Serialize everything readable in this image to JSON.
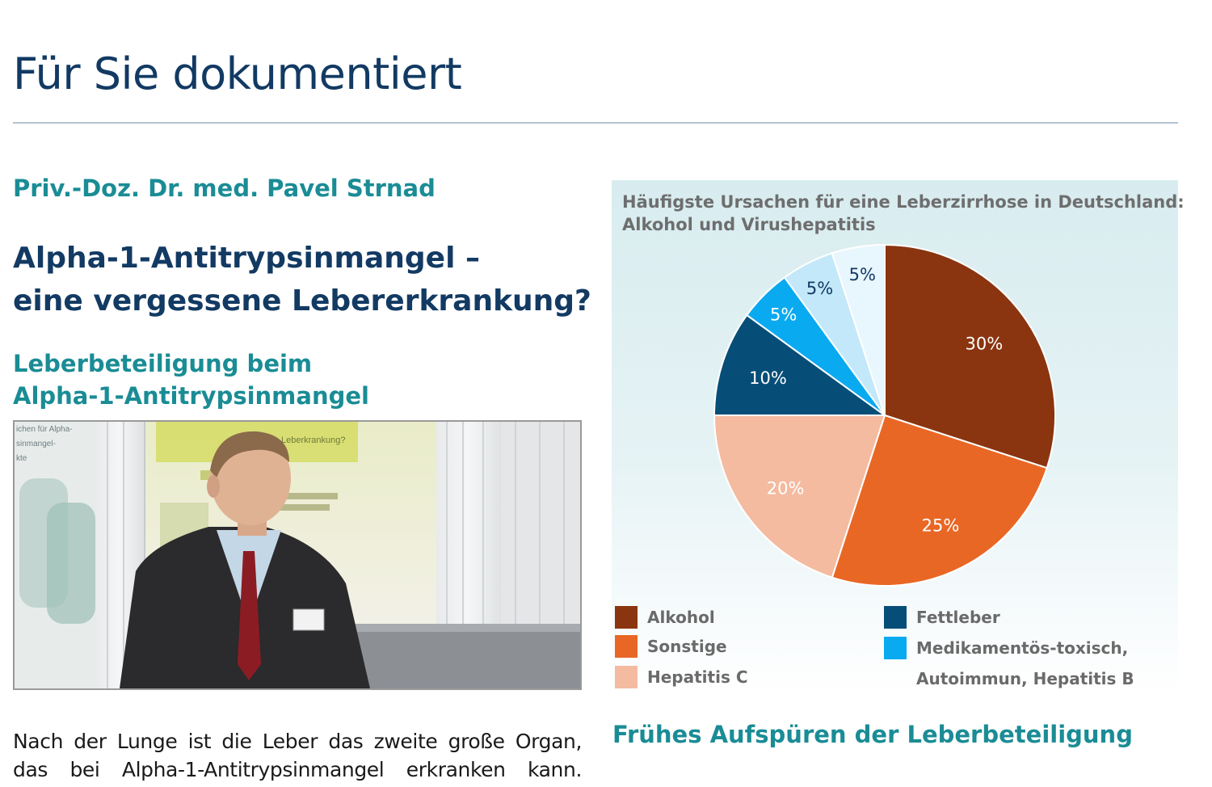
{
  "page_title": "Für Sie dokumentiert",
  "article": {
    "author": "Priv.-Doz. Dr. med. Pavel Strnad",
    "headline_lines": [
      "Alpha-1-Antitrypsinmangel –",
      "eine vergessene Lebererkrankung?"
    ],
    "subhead_lines": [
      "Leberbeteiligung beim",
      "Alpha-1-Antitrypsinmangel"
    ],
    "body_lines": [
      "Nach der Lunge ist die Leber das zweite große Organ,",
      "das bei Alpha-1-Antitrypsinmangel erkranken kann."
    ],
    "next_section": "Frühes Aufspüren der Leberbeteiligung"
  },
  "photo": {
    "slide_title": "Leberkrankung?",
    "poster_text": [
      "ichen für Alpha-",
      "sinmangel-",
      "kte"
    ]
  },
  "chart_data": {
    "type": "pie",
    "title_lines": [
      "Häufigste Ursachen für eine Leberzirrhose in Deutschland:",
      "Alkohol und Virushepatitis"
    ],
    "slices": [
      {
        "label": "Alkohol",
        "value": 30,
        "display": "30%",
        "color": "#8a3510",
        "label_color": "#ffffff"
      },
      {
        "label": "Sonstige",
        "value": 25,
        "display": "25%",
        "color": "#e96725",
        "label_color": "#ffffff"
      },
      {
        "label": "Hepatitis C",
        "value": 20,
        "display": "20%",
        "color": "#f4bba0",
        "label_color": "#ffffff"
      },
      {
        "label": "Fettleber",
        "value": 10,
        "display": "10%",
        "color": "#064e78",
        "label_color": "#ffffff"
      },
      {
        "label": "Medikamentös-toxisch",
        "value": 5,
        "display": "5%",
        "color": "#0aaaf0",
        "label_color": "#ffffff"
      },
      {
        "label": "Autoimmun",
        "value": 5,
        "display": "5%",
        "color": "#c3e8fa",
        "label_color": "#123a63"
      },
      {
        "label": "Hepatitis B",
        "value": 5,
        "display": "5%",
        "color": "#e8f6fd",
        "label_color": "#123a63"
      }
    ],
    "legend": [
      {
        "lines": [
          "Alkohol"
        ],
        "color": "#8a3510"
      },
      {
        "lines": [
          "Sonstige"
        ],
        "color": "#e96725"
      },
      {
        "lines": [
          "Hepatitis C"
        ],
        "color": "#f4bba0"
      },
      {
        "lines": [
          "Fettleber"
        ],
        "color": "#064e78"
      },
      {
        "lines": [
          "Medikamentös-toxisch,",
          "Autoimmun, Hepatitis B"
        ],
        "color": "#0aaaf0"
      }
    ],
    "legend_placement": "bottom"
  }
}
